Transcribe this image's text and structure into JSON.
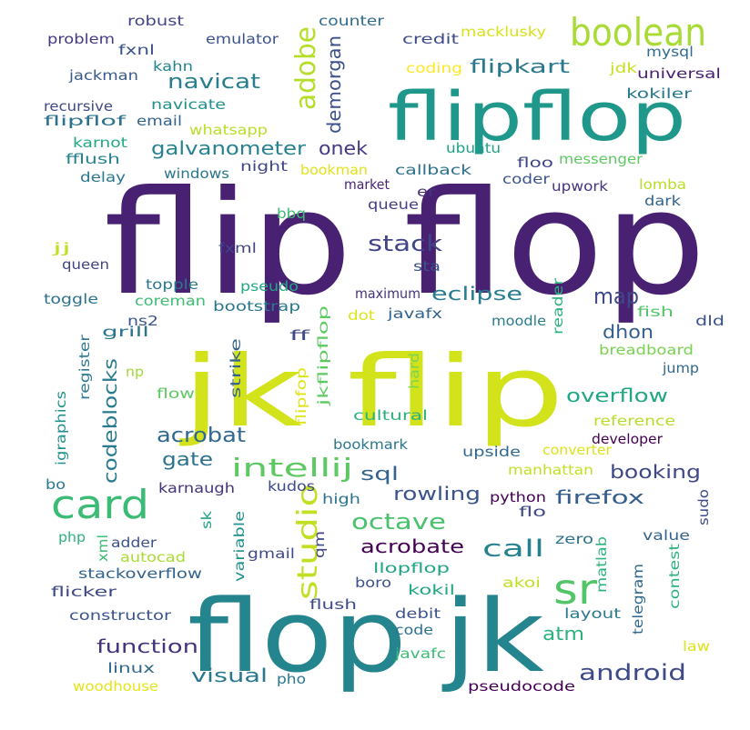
{
  "words": [
    {
      "text": "flip flop",
      "color": "#482173"
    },
    {
      "text": "jk flip",
      "color": "#d2e21b"
    },
    {
      "text": "flop jk",
      "color": "#25858e"
    },
    {
      "text": "flipflop",
      "color": "#1f988b"
    },
    {
      "text": "boolean",
      "color": "#a8db34"
    },
    {
      "text": "card",
      "color": "#3bbb75"
    },
    {
      "text": "sr",
      "color": "#52c569"
    },
    {
      "text": "adobe",
      "color": "#b5de2b"
    },
    {
      "text": "navicat",
      "color": "#277f8e"
    },
    {
      "text": "flipkart",
      "color": "#2a788e"
    },
    {
      "text": "demorgan",
      "color": "#3b528b"
    },
    {
      "text": "galvanometer",
      "color": "#26828e"
    },
    {
      "text": "onek",
      "color": "#443a83"
    },
    {
      "text": "stack",
      "color": "#414487"
    },
    {
      "text": "map",
      "color": "#3e4989"
    },
    {
      "text": "eclipse",
      "color": "#287d8e"
    },
    {
      "text": "dhon",
      "color": "#35608d"
    },
    {
      "text": "overflow",
      "color": "#22a785"
    },
    {
      "text": "intellij",
      "color": "#5ec962"
    },
    {
      "text": "studio",
      "color": "#c2df23"
    },
    {
      "text": "octave",
      "color": "#4ac16d"
    },
    {
      "text": "acrobat",
      "color": "#31688e"
    },
    {
      "text": "gate",
      "color": "#2c728e"
    },
    {
      "text": "codeblocks",
      "color": "#297b8e"
    },
    {
      "text": "sql",
      "color": "#33638d"
    },
    {
      "text": "rowling",
      "color": "#3b528b"
    },
    {
      "text": "firefox",
      "color": "#355f8d"
    },
    {
      "text": "booking",
      "color": "#3f4788"
    },
    {
      "text": "call",
      "color": "#26818e"
    },
    {
      "text": "acrobate",
      "color": "#440154"
    },
    {
      "text": "android",
      "color": "#3e4a89"
    },
    {
      "text": "function",
      "color": "#46337e"
    },
    {
      "text": "atm",
      "color": "#2db27d"
    },
    {
      "text": "visual",
      "color": "#2a788e"
    },
    {
      "text": "robust",
      "color": "#414487"
    },
    {
      "text": "counter",
      "color": "#2f6c8e"
    },
    {
      "text": "macklusky",
      "color": "#d8e219"
    },
    {
      "text": "problem",
      "color": "#443983"
    },
    {
      "text": "emulator",
      "color": "#3a538b"
    },
    {
      "text": "credit",
      "color": "#3e4c8a"
    },
    {
      "text": "mysql",
      "color": "#2f6c8e"
    },
    {
      "text": "fxnl",
      "color": "#3b528b"
    },
    {
      "text": "jackman",
      "color": "#38598c"
    },
    {
      "text": "kahn",
      "color": "#25858e"
    },
    {
      "text": "coding",
      "color": "#fde725"
    },
    {
      "text": "jdk",
      "color": "#c8e020"
    },
    {
      "text": "universal",
      "color": "#481f70"
    },
    {
      "text": "recursive",
      "color": "#3f4889"
    },
    {
      "text": "navicate",
      "color": "#21918c"
    },
    {
      "text": "kokiler",
      "color": "#2a788e"
    },
    {
      "text": "flipflof",
      "color": "#2c728e"
    },
    {
      "text": "email",
      "color": "#33638d"
    },
    {
      "text": "whatsapp",
      "color": "#b8de29"
    },
    {
      "text": "karnot",
      "color": "#22a884"
    },
    {
      "text": "ubuntu",
      "color": "#1fa088"
    },
    {
      "text": "floo",
      "color": "#404688"
    },
    {
      "text": "fflush",
      "color": "#26828e"
    },
    {
      "text": "messenger",
      "color": "#5ec962"
    },
    {
      "text": "delay",
      "color": "#2a788e"
    },
    {
      "text": "windows",
      "color": "#2a768e"
    },
    {
      "text": "night",
      "color": "#404588"
    },
    {
      "text": "bookman",
      "color": "#e2e418"
    },
    {
      "text": "callback",
      "color": "#2c718e"
    },
    {
      "text": "coder",
      "color": "#3a548c"
    },
    {
      "text": "lomba",
      "color": "#b8de29"
    },
    {
      "text": "upwork",
      "color": "#46337e"
    },
    {
      "text": "market",
      "color": "#482475"
    },
    {
      "text": "er",
      "color": "#46327e"
    },
    {
      "text": "dark",
      "color": "#33638d"
    },
    {
      "text": "queue",
      "color": "#433e85"
    },
    {
      "text": "bbq",
      "color": "#3dbc74"
    },
    {
      "text": "jj",
      "color": "#c2df23"
    },
    {
      "text": "fxml",
      "color": "#414487"
    },
    {
      "text": "sta",
      "color": "#3b528b"
    },
    {
      "text": "queen",
      "color": "#414487"
    },
    {
      "text": "topple",
      "color": "#2a788e"
    },
    {
      "text": "pseudo",
      "color": "#22a884"
    },
    {
      "text": "coreman",
      "color": "#3dbc74"
    },
    {
      "text": "maximum",
      "color": "#46337e"
    },
    {
      "text": "fish",
      "color": "#54c568"
    },
    {
      "text": "toggle",
      "color": "#2c728e"
    },
    {
      "text": "ns2",
      "color": "#3a538b"
    },
    {
      "text": "bootstrap",
      "color": "#2a788e"
    },
    {
      "text": "dot",
      "color": "#dde318"
    },
    {
      "text": "javafx",
      "color": "#33638d"
    },
    {
      "text": "reader",
      "color": "#2db27d"
    },
    {
      "text": "dld",
      "color": "#3b528b"
    },
    {
      "text": "grill",
      "color": "#2a768e"
    },
    {
      "text": "moodle",
      "color": "#287d8e"
    },
    {
      "text": "ff",
      "color": "#3e4a89"
    },
    {
      "text": "breadboard",
      "color": "#7ad151"
    },
    {
      "text": "register",
      "color": "#2a788e"
    },
    {
      "text": "jkflipflop",
      "color": "#5ec962"
    },
    {
      "text": "np",
      "color": "#a0da39"
    },
    {
      "text": "strike",
      "color": "#33638d"
    },
    {
      "text": "hard",
      "color": "#7fd34e"
    },
    {
      "text": "jump",
      "color": "#31688e"
    },
    {
      "text": "flow",
      "color": "#5ec962"
    },
    {
      "text": "igraphics",
      "color": "#21918c"
    },
    {
      "text": "flipfop",
      "color": "#dfe318"
    },
    {
      "text": "cultural",
      "color": "#2db27d"
    },
    {
      "text": "reference",
      "color": "#b5de2b"
    },
    {
      "text": "developer",
      "color": "#440154"
    },
    {
      "text": "bookmark",
      "color": "#2a788e"
    },
    {
      "text": "upside",
      "color": "#31688e"
    },
    {
      "text": "converter",
      "color": "#dde318"
    },
    {
      "text": "bo",
      "color": "#2a788e"
    },
    {
      "text": "manhattan",
      "color": "#c2df23"
    },
    {
      "text": "karnaugh",
      "color": "#46327e"
    },
    {
      "text": "kudos",
      "color": "#3e4a89"
    },
    {
      "text": "high",
      "color": "#2c728e"
    },
    {
      "text": "python",
      "color": "#440154"
    },
    {
      "text": "sudo",
      "color": "#3e4989"
    },
    {
      "text": "php",
      "color": "#2db27d"
    },
    {
      "text": "sk",
      "color": "#20a386"
    },
    {
      "text": "qm",
      "color": "#404688"
    },
    {
      "text": "flo",
      "color": "#3e4a89"
    },
    {
      "text": "zero",
      "color": "#2c728e"
    },
    {
      "text": "adder",
      "color": "#3b528b"
    },
    {
      "text": "xml",
      "color": "#3dbc74"
    },
    {
      "text": "variable",
      "color": "#21918c"
    },
    {
      "text": "matlab",
      "color": "#2db27d"
    },
    {
      "text": "value",
      "color": "#33638d"
    },
    {
      "text": "autocad",
      "color": "#aadc32"
    },
    {
      "text": "gmail",
      "color": "#3e4a89"
    },
    {
      "text": "llopflop",
      "color": "#20a486"
    },
    {
      "text": "contest",
      "color": "#2db27d"
    },
    {
      "text": "stackoverflow",
      "color": "#33638d"
    },
    {
      "text": "boro",
      "color": "#3b528b"
    },
    {
      "text": "telegram",
      "color": "#31688e"
    },
    {
      "text": "akoi",
      "color": "#c2df23"
    },
    {
      "text": "flicker",
      "color": "#3e4989"
    },
    {
      "text": "kokil",
      "color": "#22a884"
    },
    {
      "text": "constructor",
      "color": "#3a548c"
    },
    {
      "text": "flush",
      "color": "#3e4989"
    },
    {
      "text": "debit",
      "color": "#3b528b"
    },
    {
      "text": "layout",
      "color": "#2a788e"
    },
    {
      "text": "code",
      "color": "#2c728e"
    },
    {
      "text": "law",
      "color": "#dde318"
    },
    {
      "text": "javafc",
      "color": "#3dbc74"
    },
    {
      "text": "linux",
      "color": "#31688e"
    },
    {
      "text": "woodhouse",
      "color": "#e5e419"
    },
    {
      "text": "pho",
      "color": "#2a788e"
    },
    {
      "text": "pseudocode",
      "color": "#440154"
    }
  ]
}
